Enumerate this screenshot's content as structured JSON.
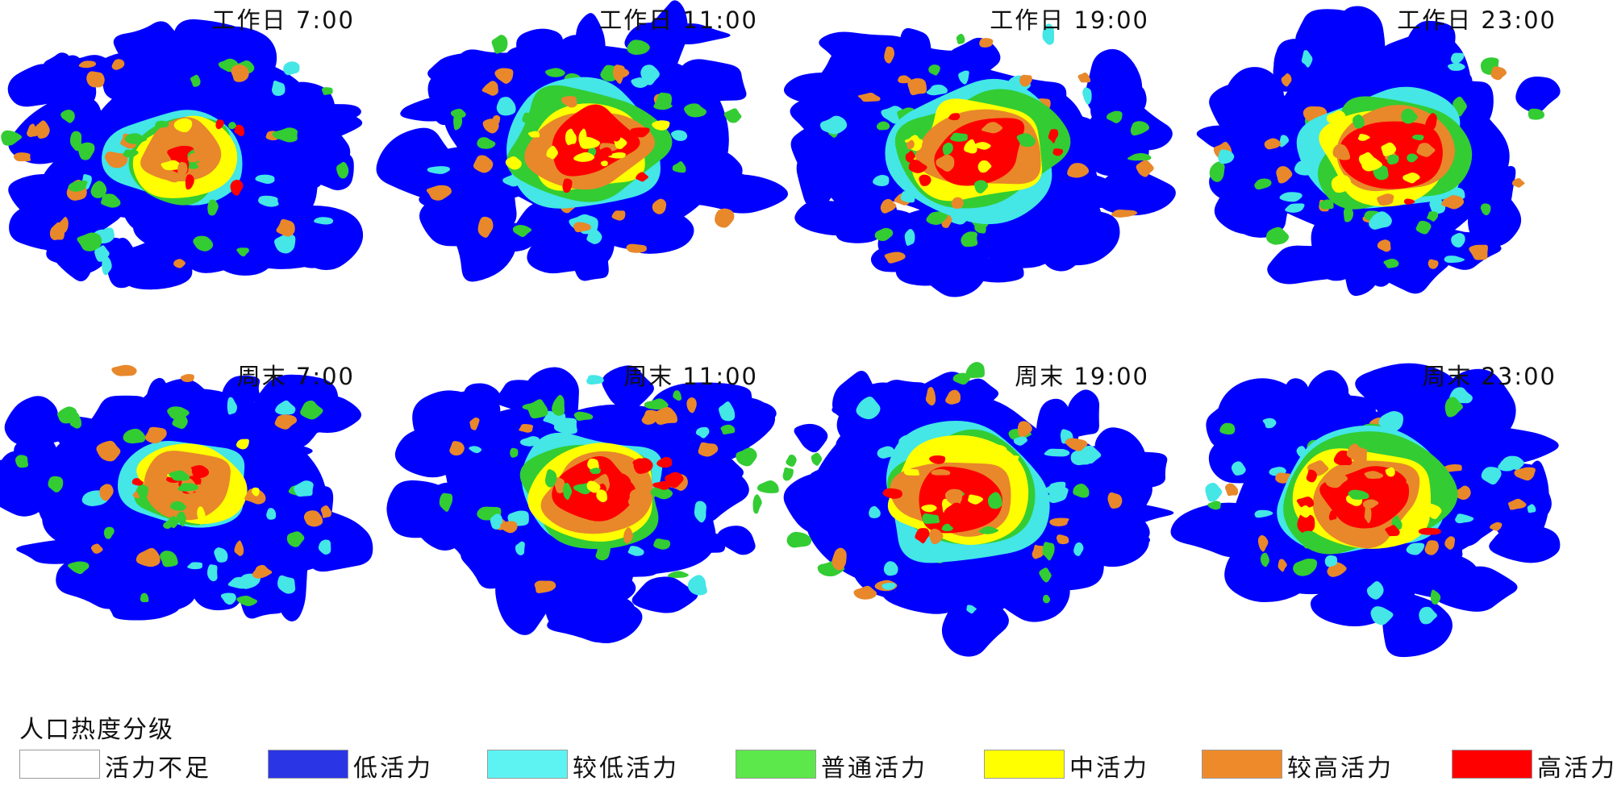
{
  "panels": [
    {
      "title": "工作日 7:00",
      "intensity": 0.42
    },
    {
      "title": "工作日 11:00",
      "intensity": 0.88
    },
    {
      "title": "工作日 19:00",
      "intensity": 0.9
    },
    {
      "title": "工作日 23:00",
      "intensity": 0.8
    },
    {
      "title": "周末 7:00",
      "intensity": 0.38
    },
    {
      "title": "周末 11:00",
      "intensity": 0.62
    },
    {
      "title": "周末 19:00",
      "intensity": 0.86
    },
    {
      "title": "周末 23:00",
      "intensity": 0.82
    }
  ],
  "legend": {
    "title": "人口热度分级",
    "items": [
      {
        "label": "活力不足",
        "color": "#ffffff"
      },
      {
        "label": "低活力",
        "color": "#2a35e6"
      },
      {
        "label": "较低活力",
        "color": "#5ef3f3"
      },
      {
        "label": "普通活力",
        "color": "#5ce84a"
      },
      {
        "label": "中活力",
        "color": "#ffff00"
      },
      {
        "label": "较高活力",
        "color": "#ef8a2a"
      },
      {
        "label": "高活力",
        "color": "#ff0000"
      }
    ]
  },
  "map_colors": {
    "low": "#0000ff",
    "lower": "#44e6e6",
    "normal": "#33cc33",
    "medium": "#ffff00",
    "higher": "#e8882a",
    "high": "#ff0000"
  }
}
